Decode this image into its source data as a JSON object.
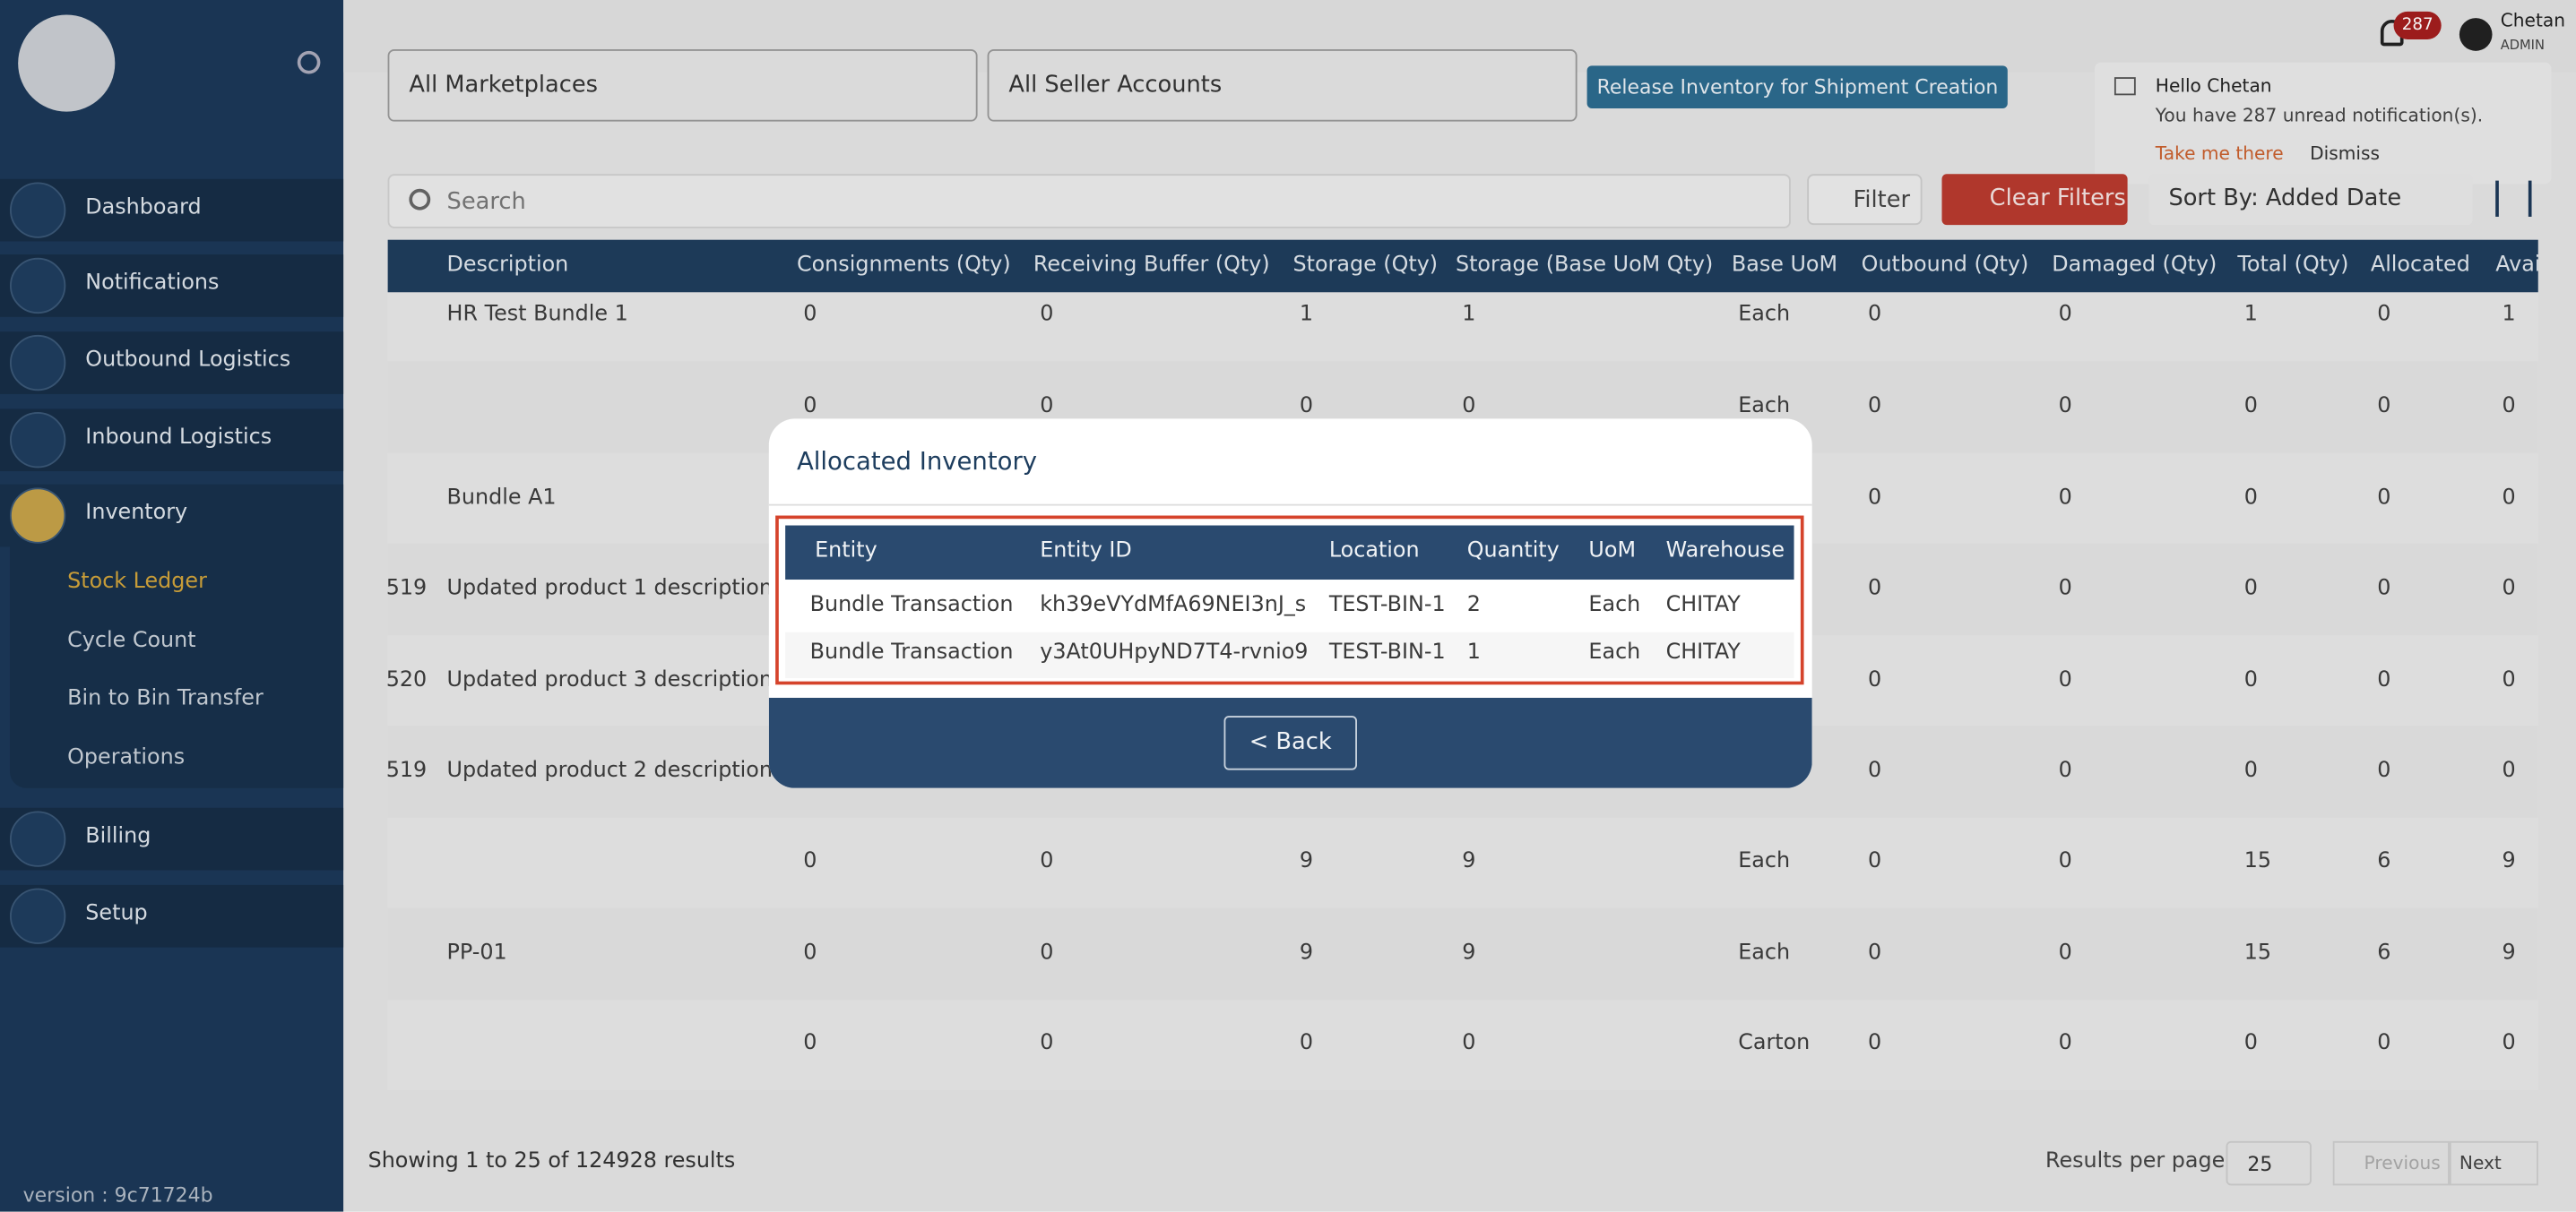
{
  "sidebar": {
    "nav": [
      "Dashboard",
      "Notifications",
      "Outbound Logistics",
      "Inbound Logistics",
      "Inventory"
    ],
    "subnav": [
      "Stock Ledger",
      "Cycle Count",
      "Bin to Bin Transfer",
      "Operations"
    ],
    "nav_bottom": [
      "Billing",
      "Setup"
    ],
    "version": "version : 9c71724b"
  },
  "topbar": {
    "badge": "287",
    "user": "Chetan",
    "role": "ADMIN"
  },
  "notification": {
    "title": "Hello Chetan",
    "message": "You have 287 unread notification(s).",
    "action": "Take me there",
    "dismiss": "Dismiss"
  },
  "filters": {
    "marketplace": "All Marketplaces",
    "seller": "All Seller Accounts",
    "release": "Release Inventory for Shipment Creation",
    "search": "Search",
    "filter": "Filter",
    "clear": "Clear Filters",
    "sort": "Sort By: Added Date"
  },
  "table": {
    "headers": [
      "Description",
      "Consignments (Qty)",
      "Receiving Buffer (Qty)",
      "Storage (Qty)",
      "Storage (Base UoM Qty)",
      "Base UoM",
      "Outbound (Qty)",
      "Damaged (Qty)",
      "Total (Qty)",
      "Allocated",
      "Avai"
    ],
    "rows": [
      [
        null,
        "HR Test Bundle 1",
        "0",
        "0",
        "1",
        "1",
        "Each",
        "0",
        "0",
        "1",
        "0",
        "1"
      ],
      [
        null,
        null,
        "0",
        "0",
        "0",
        "0",
        "Each",
        "0",
        "0",
        "0",
        "0",
        "0"
      ],
      [
        null,
        "Bundle A1",
        null,
        null,
        null,
        null,
        null,
        "0",
        "0",
        "0",
        "0",
        "0"
      ],
      [
        "519",
        "Updated product 1 description",
        null,
        null,
        null,
        null,
        null,
        "0",
        "0",
        "0",
        "0",
        "0"
      ],
      [
        "520",
        "Updated product 3 description",
        null,
        null,
        null,
        null,
        null,
        "0",
        "0",
        "0",
        "0",
        "0"
      ],
      [
        "519",
        "Updated product 2 description",
        null,
        null,
        null,
        null,
        null,
        "0",
        "0",
        "0",
        "0",
        "0"
      ],
      [
        null,
        null,
        "0",
        "0",
        "9",
        "9",
        "Each",
        "0",
        "0",
        "15",
        "6",
        "9"
      ],
      [
        null,
        "PP-01",
        "0",
        "0",
        "9",
        "9",
        "Each",
        "0",
        "0",
        "15",
        "6",
        "9"
      ],
      [
        null,
        null,
        "0",
        "0",
        "0",
        "0",
        "Carton",
        "0",
        "0",
        "0",
        "0",
        "0"
      ]
    ]
  },
  "footer": {
    "showing": "Showing 1 to 25 of 124928 results",
    "per_page_label": "Results per page",
    "per_page": "25",
    "previous": "Previous",
    "next": "Next"
  },
  "modal": {
    "title": "Allocated Inventory",
    "headers": [
      "Entity",
      "Entity ID",
      "Location",
      "Quantity",
      "UoM",
      "Warehouse"
    ],
    "rows": [
      [
        "Bundle Transaction",
        "kh39eVYdMfA69NEI3nJ_s",
        "TEST-BIN-1",
        "2",
        "Each",
        "CHITAY"
      ],
      [
        "Bundle Transaction",
        "y3At0UHpyND7T4-rvnio9",
        "TEST-BIN-1",
        "1",
        "Each",
        "CHITAY"
      ]
    ],
    "back": "< Back"
  }
}
